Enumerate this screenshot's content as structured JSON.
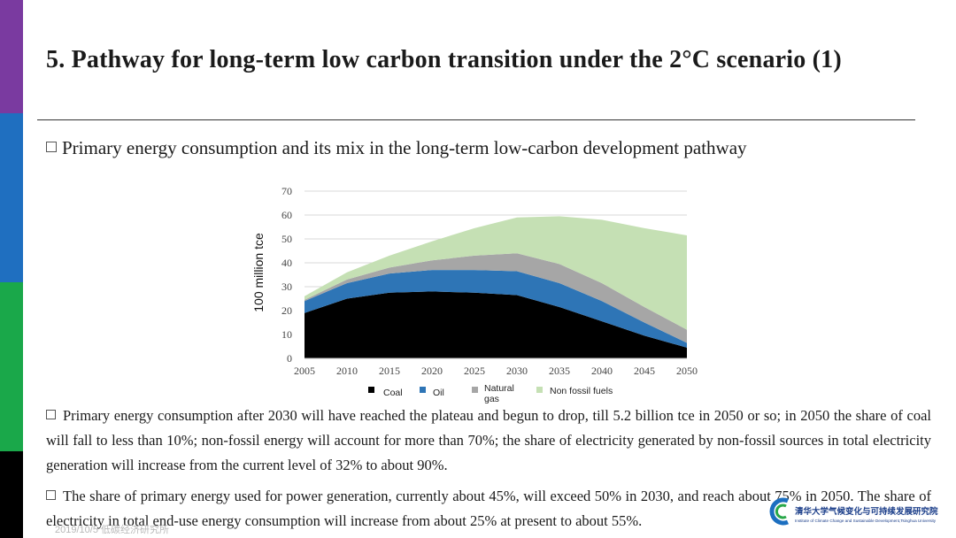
{
  "slide": {
    "title": "5. Pathway for long-term low carbon transition under the 2°C scenario (1)",
    "subtitle": "Primary energy consumption and its mix in the long-term  low-carbon  development  pathway",
    "paragraphs": [
      "Primary energy consumption after 2030 will have reached the plateau and begun to drop, till 5.2 billion tce in 2050 or so; in 2050 the share of coal will fall to less than 10%; non-fossil energy will account for more than 70%; the share of electricity generated by non-fossil sources in total electricity generation  will increase  from the current level of 32% to about 90%.",
      "The share of primary energy used for power generation, currently about 45%, will exceed 50% in 2030, and reach about 75% in 2050. The share of electricity  in total end-use energy consumption will increase  from about 25% at present  to about 55%."
    ],
    "footer_date": "2019/10/5  低碳经济研究所",
    "colors": {
      "purple": "#7a3aa0",
      "blue": "#1f6fc0",
      "green": "#1aa84a",
      "black": "#000000"
    }
  },
  "logo": {
    "cn": "清华大学气候变化与可持续发展研究院",
    "en": "Institute of Climate Change and Sustainable Development,Tsinghua University"
  },
  "chart_data": {
    "type": "area",
    "stacked": true,
    "ylabel": "100 million tce",
    "xlabel": "",
    "x": [
      2005,
      2010,
      2015,
      2020,
      2025,
      2030,
      2035,
      2040,
      2045,
      2050
    ],
    "ylim": [
      0,
      70
    ],
    "yticks": [
      0,
      10,
      20,
      30,
      40,
      50,
      60,
      70
    ],
    "grid": true,
    "legend_position": "bottom",
    "series": [
      {
        "name": "Coal",
        "color": "#000000",
        "values": [
          19,
          25,
          27.5,
          28,
          27.5,
          26.5,
          21.5,
          15.5,
          9.5,
          4.5
        ]
      },
      {
        "name": "Oil",
        "color": "#2e75b6",
        "values": [
          5,
          6.5,
          8,
          9,
          9.5,
          10,
          10,
          8.5,
          5.5,
          2
        ]
      },
      {
        "name": "Natural gas",
        "color": "#a6a6a6",
        "values": [
          0.5,
          1.5,
          2.5,
          4,
          6,
          7.5,
          8,
          7.5,
          6.5,
          5.5
        ]
      },
      {
        "name": "Non fossil fuels",
        "color": "#c5e0b4",
        "values": [
          1.5,
          3,
          5,
          8,
          11.5,
          15,
          20,
          26.5,
          33,
          39.5
        ]
      }
    ]
  }
}
